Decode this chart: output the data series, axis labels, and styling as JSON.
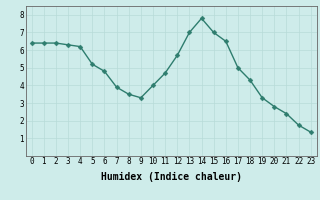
{
  "x": [
    0,
    1,
    2,
    3,
    4,
    5,
    6,
    7,
    8,
    9,
    10,
    11,
    12,
    13,
    14,
    15,
    16,
    17,
    18,
    19,
    20,
    21,
    22,
    23
  ],
  "y": [
    6.4,
    6.4,
    6.4,
    6.3,
    6.2,
    5.2,
    4.8,
    3.9,
    3.5,
    3.3,
    4.0,
    4.7,
    5.7,
    7.0,
    7.8,
    7.0,
    6.5,
    5.0,
    4.3,
    3.3,
    2.8,
    2.4,
    1.75,
    1.35
  ],
  "xlabel": "Humidex (Indice chaleur)",
  "xlim": [
    -0.5,
    23.5
  ],
  "ylim": [
    0,
    8.5
  ],
  "yticks": [
    1,
    2,
    3,
    4,
    5,
    6,
    7,
    8
  ],
  "xtick_labels": [
    "0",
    "1",
    "2",
    "3",
    "4",
    "5",
    "6",
    "7",
    "8",
    "9",
    "10",
    "11",
    "12",
    "13",
    "14",
    "15",
    "16",
    "17",
    "18",
    "19",
    "20",
    "21",
    "22",
    "23"
  ],
  "line_color": "#2e7d6e",
  "marker_color": "#2e7d6e",
  "bg_color": "#ceecea",
  "grid_color": "#b8dbd8",
  "tick_label_fontsize": 5.5,
  "xlabel_fontsize": 7.0,
  "line_width": 1.0,
  "marker_size": 2.5
}
